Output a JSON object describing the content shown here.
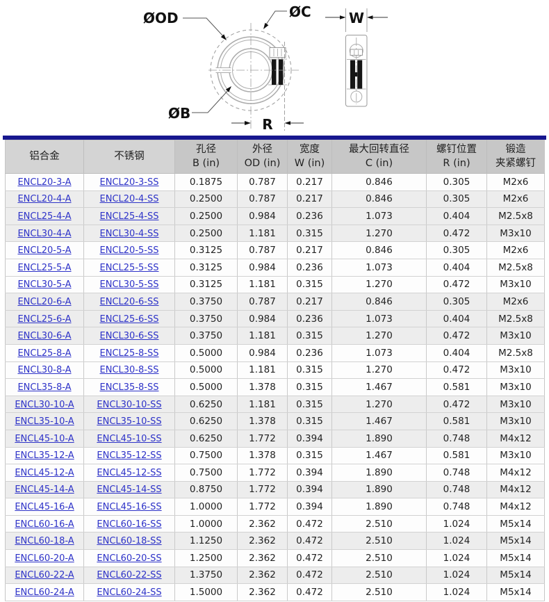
{
  "diagram": {
    "labels": {
      "od": "ØOD",
      "c": "ØC",
      "b": "ØB",
      "w": "W",
      "r": "R"
    }
  },
  "colors": {
    "divider_blue": "#17178F",
    "header_light_gray": "#d4d4d4",
    "header_dark_gray": "#c7c7c7",
    "shaded_row": "#ededed",
    "link_blue": "#2d32c8"
  },
  "table": {
    "headers": [
      {
        "line1": "铝合金",
        "line2": ""
      },
      {
        "line1": "不锈钢",
        "line2": ""
      },
      {
        "line1": "孔径",
        "line2": "B (in)"
      },
      {
        "line1": "外径",
        "line2": "OD (in)"
      },
      {
        "line1": "宽度",
        "line2": "W (in)"
      },
      {
        "line1": "最大回转直径",
        "line2": "C (in)"
      },
      {
        "line1": "螺钉位置",
        "line2": "R (in)"
      },
      {
        "line1": "锻造",
        "line2": "夹紧螺钉"
      }
    ],
    "rows": [
      {
        "aluminum": "ENCL20-3-A",
        "stainless": "ENCL20-3-SS",
        "bore_b": "0.1875",
        "od": "0.787",
        "w": "0.217",
        "c": "0.846",
        "r": "0.305",
        "screw": "M2x6",
        "shaded": false
      },
      {
        "aluminum": "ENCL20-4-A",
        "stainless": "ENCL20-4-SS",
        "bore_b": "0.2500",
        "od": "0.787",
        "w": "0.217",
        "c": "0.846",
        "r": "0.305",
        "screw": "M2x6",
        "shaded": true
      },
      {
        "aluminum": "ENCL25-4-A",
        "stainless": "ENCL25-4-SS",
        "bore_b": "0.2500",
        "od": "0.984",
        "w": "0.236",
        "c": "1.073",
        "r": "0.404",
        "screw": "M2.5x8",
        "shaded": true
      },
      {
        "aluminum": "ENCL30-4-A",
        "stainless": "ENCL30-4-SS",
        "bore_b": "0.2500",
        "od": "1.181",
        "w": "0.315",
        "c": "1.270",
        "r": "0.472",
        "screw": "M3x10",
        "shaded": true
      },
      {
        "aluminum": "ENCL20-5-A",
        "stainless": "ENCL20-5-SS",
        "bore_b": "0.3125",
        "od": "0.787",
        "w": "0.217",
        "c": "0.846",
        "r": "0.305",
        "screw": "M2x6",
        "shaded": false
      },
      {
        "aluminum": "ENCL25-5-A",
        "stainless": "ENCL25-5-SS",
        "bore_b": "0.3125",
        "od": "0.984",
        "w": "0.236",
        "c": "1.073",
        "r": "0.404",
        "screw": "M2.5x8",
        "shaded": false
      },
      {
        "aluminum": "ENCL30-5-A",
        "stainless": "ENCL30-5-SS",
        "bore_b": "0.3125",
        "od": "1.181",
        "w": "0.315",
        "c": "1.270",
        "r": "0.472",
        "screw": "M3x10",
        "shaded": false
      },
      {
        "aluminum": "ENCL20-6-A",
        "stainless": "ENCL20-6-SS",
        "bore_b": "0.3750",
        "od": "0.787",
        "w": "0.217",
        "c": "0.846",
        "r": "0.305",
        "screw": "M2x6",
        "shaded": true
      },
      {
        "aluminum": "ENCL25-6-A",
        "stainless": "ENCL25-6-SS",
        "bore_b": "0.3750",
        "od": "0.984",
        "w": "0.236",
        "c": "1.073",
        "r": "0.404",
        "screw": "M2.5x8",
        "shaded": true
      },
      {
        "aluminum": "ENCL30-6-A",
        "stainless": "ENCL30-6-SS",
        "bore_b": "0.3750",
        "od": "1.181",
        "w": "0.315",
        "c": "1.270",
        "r": "0.472",
        "screw": "M3x10",
        "shaded": true
      },
      {
        "aluminum": "ENCL25-8-A",
        "stainless": "ENCL25-8-SS",
        "bore_b": "0.5000",
        "od": "0.984",
        "w": "0.236",
        "c": "1.073",
        "r": "0.404",
        "screw": "M2.5x8",
        "shaded": false
      },
      {
        "aluminum": "ENCL30-8-A",
        "stainless": "ENCL30-8-SS",
        "bore_b": "0.5000",
        "od": "1.181",
        "w": "0.315",
        "c": "1.270",
        "r": "0.472",
        "screw": "M3x10",
        "shaded": false
      },
      {
        "aluminum": "ENCL35-8-A",
        "stainless": "ENCL35-8-SS",
        "bore_b": "0.5000",
        "od": "1.378",
        "w": "0.315",
        "c": "1.467",
        "r": "0.581",
        "screw": "M3x10",
        "shaded": false
      },
      {
        "aluminum": "ENCL30-10-A",
        "stainless": "ENCL30-10-SS",
        "bore_b": "0.6250",
        "od": "1.181",
        "w": "0.315",
        "c": "1.270",
        "r": "0.472",
        "screw": "M3x10",
        "shaded": true
      },
      {
        "aluminum": "ENCL35-10-A",
        "stainless": "ENCL35-10-SS",
        "bore_b": "0.6250",
        "od": "1.378",
        "w": "0.315",
        "c": "1.467",
        "r": "0.581",
        "screw": "M3x10",
        "shaded": true
      },
      {
        "aluminum": "ENCL45-10-A",
        "stainless": "ENCL45-10-SS",
        "bore_b": "0.6250",
        "od": "1.772",
        "w": "0.394",
        "c": "1.890",
        "r": "0.748",
        "screw": "M4x12",
        "shaded": true
      },
      {
        "aluminum": "ENCL35-12-A",
        "stainless": "ENCL35-12-SS",
        "bore_b": "0.7500",
        "od": "1.378",
        "w": "0.315",
        "c": "1.467",
        "r": "0.581",
        "screw": "M3x10",
        "shaded": false
      },
      {
        "aluminum": "ENCL45-12-A",
        "stainless": "ENCL45-12-SS",
        "bore_b": "0.7500",
        "od": "1.772",
        "w": "0.394",
        "c": "1.890",
        "r": "0.748",
        "screw": "M4x12",
        "shaded": false
      },
      {
        "aluminum": "ENCL45-14-A",
        "stainless": "ENCL45-14-SS",
        "bore_b": "0.8750",
        "od": "1.772",
        "w": "0.394",
        "c": "1.890",
        "r": "0.748",
        "screw": "M4x12",
        "shaded": true
      },
      {
        "aluminum": "ENCL45-16-A",
        "stainless": "ENCL45-16-SS",
        "bore_b": "1.0000",
        "od": "1.772",
        "w": "0.394",
        "c": "1.890",
        "r": "0.748",
        "screw": "M4x12",
        "shaded": false
      },
      {
        "aluminum": "ENCL60-16-A",
        "stainless": "ENCL60-16-SS",
        "bore_b": "1.0000",
        "od": "2.362",
        "w": "0.472",
        "c": "2.510",
        "r": "1.024",
        "screw": "M5x14",
        "shaded": false
      },
      {
        "aluminum": "ENCL60-18-A",
        "stainless": "ENCL60-18-SS",
        "bore_b": "1.1250",
        "od": "2.362",
        "w": "0.472",
        "c": "2.510",
        "r": "1.024",
        "screw": "M5x14",
        "shaded": true
      },
      {
        "aluminum": "ENCL60-20-A",
        "stainless": "ENCL60-20-SS",
        "bore_b": "1.2500",
        "od": "2.362",
        "w": "0.472",
        "c": "2.510",
        "r": "1.024",
        "screw": "M5x14",
        "shaded": false
      },
      {
        "aluminum": "ENCL60-22-A",
        "stainless": "ENCL60-22-SS",
        "bore_b": "1.3750",
        "od": "2.362",
        "w": "0.472",
        "c": "2.510",
        "r": "1.024",
        "screw": "M5x14",
        "shaded": true
      },
      {
        "aluminum": "ENCL60-24-A",
        "stainless": "ENCL60-24-SS",
        "bore_b": "1.5000",
        "od": "2.362",
        "w": "0.472",
        "c": "2.510",
        "r": "1.024",
        "screw": "M5x14",
        "shaded": false
      }
    ]
  }
}
